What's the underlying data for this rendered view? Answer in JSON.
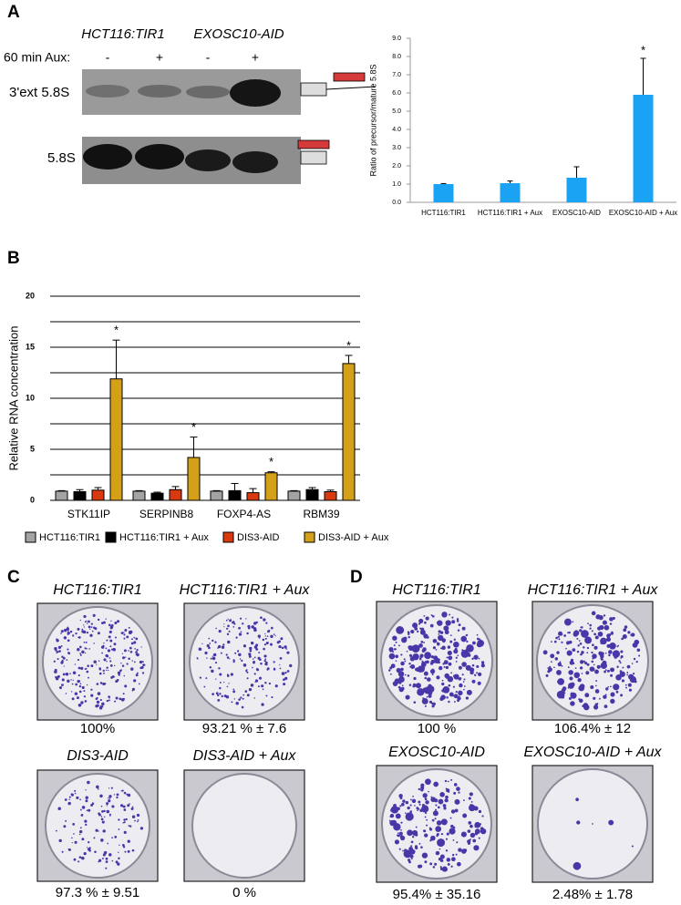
{
  "panel_labels": [
    "A",
    "B",
    "C",
    "D"
  ],
  "gel": {
    "cell_lines": [
      "HCT116:TIR1",
      "EXOSC10-AID"
    ],
    "treatment_label": "60 min Aux:",
    "lanes": [
      "-",
      "+",
      "-",
      "+"
    ],
    "bands": [
      "3'ext 5.8S",
      "5.8S"
    ]
  },
  "chart_data": [
    {
      "type": "bar",
      "y_label": "Ratio of precursor/mature 5.8S",
      "categories": [
        "HCT116:TIR1",
        "HCT116:TIR1 + Aux",
        "EXOSC10-AID",
        "EXOSC10-AID + Aux"
      ],
      "values": [
        1.0,
        1.05,
        1.35,
        5.9
      ],
      "errors": [
        0.03,
        0.12,
        0.6,
        2.0
      ],
      "significance": [
        null,
        null,
        null,
        "*"
      ],
      "color": "#1aa3f5",
      "ylim": [
        0,
        9
      ],
      "yticks": [
        {
          "value": 0,
          "label": "0.0"
        },
        {
          "value": 1,
          "label": "1.0"
        },
        {
          "value": 2,
          "label": "2.0"
        },
        {
          "value": 3,
          "label": "3.0"
        },
        {
          "value": 4,
          "label": "4.0"
        },
        {
          "value": 5,
          "label": "5.0"
        },
        {
          "value": 6,
          "label": "6.0"
        },
        {
          "value": 7,
          "label": "7.0"
        },
        {
          "value": 8,
          "label": "8.0"
        },
        {
          "value": 9,
          "label": "9.0"
        }
      ]
    },
    {
      "type": "grouped_bar",
      "y_label": "Relative RNA concentration",
      "categories": [
        "STK11IP",
        "SERPINB8",
        "FOXP4-AS",
        "RBM39"
      ],
      "ylim": [
        0,
        20
      ],
      "yticks": [
        0,
        5,
        10,
        15,
        20
      ],
      "minor_gridlines": [
        2.5,
        7.5,
        12.5,
        17.5
      ],
      "grid": true,
      "legend": "bottom",
      "series": [
        {
          "name": "HCT116:TIR1",
          "color": "#a3a3a3",
          "values": [
            0.9,
            0.9,
            0.9,
            0.9
          ],
          "errors": [
            0.05,
            0.05,
            0.05,
            0.05
          ]
        },
        {
          "name": "HCT116:TIR1 + Aux",
          "color": "#000000",
          "values": [
            0.85,
            0.7,
            0.95,
            1.05
          ],
          "errors": [
            0.2,
            0.1,
            0.7,
            0.2
          ]
        },
        {
          "name": "DIS3-AID",
          "color": "#d9390e",
          "values": [
            1.0,
            1.05,
            0.75,
            0.85
          ],
          "errors": [
            0.25,
            0.3,
            0.4,
            0.15
          ]
        },
        {
          "name": "DIS3-AID + Aux",
          "color": "#d4a017",
          "values": [
            11.9,
            4.2,
            2.7,
            13.4
          ],
          "errors": [
            3.8,
            2.0,
            0.1,
            0.8
          ],
          "significance": [
            "*",
            "*",
            "*",
            "*"
          ]
        }
      ]
    }
  ],
  "plates_c": [
    {
      "label": "HCT116:TIR1",
      "result": "100%"
    },
    {
      "label": "HCT116:TIR1 + Aux",
      "result": "93.21 % ± 7.6"
    },
    {
      "label": "DIS3-AID",
      "result": "97.3 % ± 9.51"
    },
    {
      "label": "DIS3-AID + Aux",
      "result": "0 %"
    }
  ],
  "plates_d": [
    {
      "label": "HCT116:TIR1",
      "result": "100 %"
    },
    {
      "label": "HCT116:TIR1 + Aux",
      "result": "106.4% ± 12"
    },
    {
      "label": "EXOSC10-AID",
      "result": "95.4% ± 35.16"
    },
    {
      "label": "EXOSC10-AID + Aux",
      "result": "2.48% ± 1.78"
    }
  ]
}
